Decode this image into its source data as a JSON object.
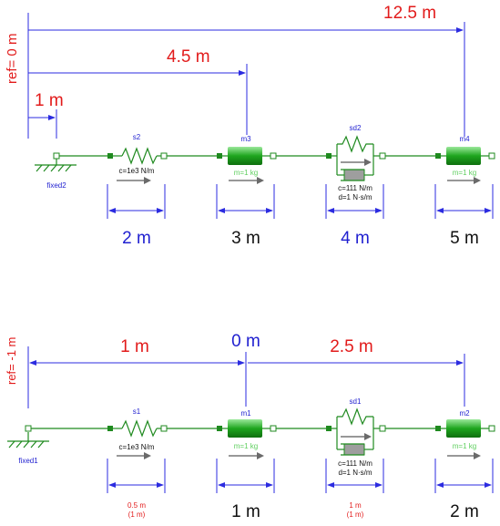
{
  "top": {
    "ref_label": "ref= 0 m",
    "dim_12_5": "12.5 m",
    "dim_4_5": "4.5 m",
    "dim_1": "1 m",
    "fixed_label": "fixed2",
    "s2": {
      "name": "s2",
      "param": "c=1e3 N/m"
    },
    "m3": {
      "name": "m3",
      "param": "m=1 kg"
    },
    "sd2": {
      "name": "sd2",
      "param_c": "c=111 N/m",
      "param_d": "d=1 N·s/m"
    },
    "m4": {
      "name": "m4",
      "param": "m=1 kg"
    },
    "bottom_dims": [
      "2 m",
      "3 m",
      "4 m",
      "5 m"
    ]
  },
  "bottom": {
    "ref_label": "ref= -1 m",
    "dim_1": "1 m",
    "dim_0": "0 m",
    "dim_2_5": "2.5 m",
    "fixed_label": "fixed1",
    "s1": {
      "name": "s1",
      "param": "c=1e3 N/m"
    },
    "m1": {
      "name": "m1",
      "param": "m=1 kg"
    },
    "sd1": {
      "name": "sd1",
      "param_c": "c=111 N/m",
      "param_d": "d=1 N·s/m"
    },
    "m2": {
      "name": "m2",
      "param": "m=1 kg"
    },
    "spring_dim": {
      "value": "0.5 m",
      "sub": "(1 m)"
    },
    "m1_dim": "1 m",
    "sd_dim": {
      "value": "1 m",
      "sub": "(1 m)"
    },
    "m2_dim": "2 m"
  }
}
